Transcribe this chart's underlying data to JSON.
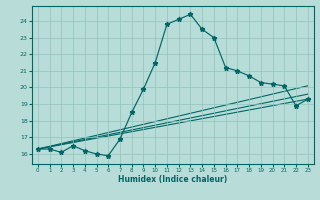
{
  "xlabel": "Humidex (Indice chaleur)",
  "bg_color": "#b8ddd8",
  "line_color": "#006666",
  "grid_color": "#90c4bc",
  "main_x": [
    0,
    1,
    2,
    3,
    4,
    5,
    6,
    7,
    8,
    9,
    10,
    11,
    12,
    13,
    14,
    15,
    16,
    17,
    18,
    19,
    20,
    21,
    22,
    23
  ],
  "main_y": [
    16.3,
    16.3,
    16.1,
    16.5,
    16.2,
    16.0,
    15.9,
    16.9,
    18.5,
    19.9,
    21.5,
    23.8,
    24.1,
    24.4,
    23.5,
    23.0,
    21.2,
    21.0,
    20.7,
    20.3,
    20.2,
    20.1,
    18.9,
    19.3
  ],
  "fan_lines": [
    {
      "x": [
        0,
        23
      ],
      "y": [
        16.3,
        19.3
      ]
    },
    {
      "x": [
        0,
        23
      ],
      "y": [
        16.3,
        19.6
      ]
    },
    {
      "x": [
        0,
        23
      ],
      "y": [
        16.3,
        20.1
      ]
    }
  ],
  "xlim": [
    -0.5,
    23.5
  ],
  "ylim": [
    15.4,
    24.9
  ],
  "xticks": [
    0,
    1,
    2,
    3,
    4,
    5,
    6,
    7,
    8,
    9,
    10,
    11,
    12,
    13,
    14,
    15,
    16,
    17,
    18,
    19,
    20,
    21,
    22,
    23
  ],
  "yticks": [
    16,
    17,
    18,
    19,
    20,
    21,
    22,
    23,
    24
  ]
}
